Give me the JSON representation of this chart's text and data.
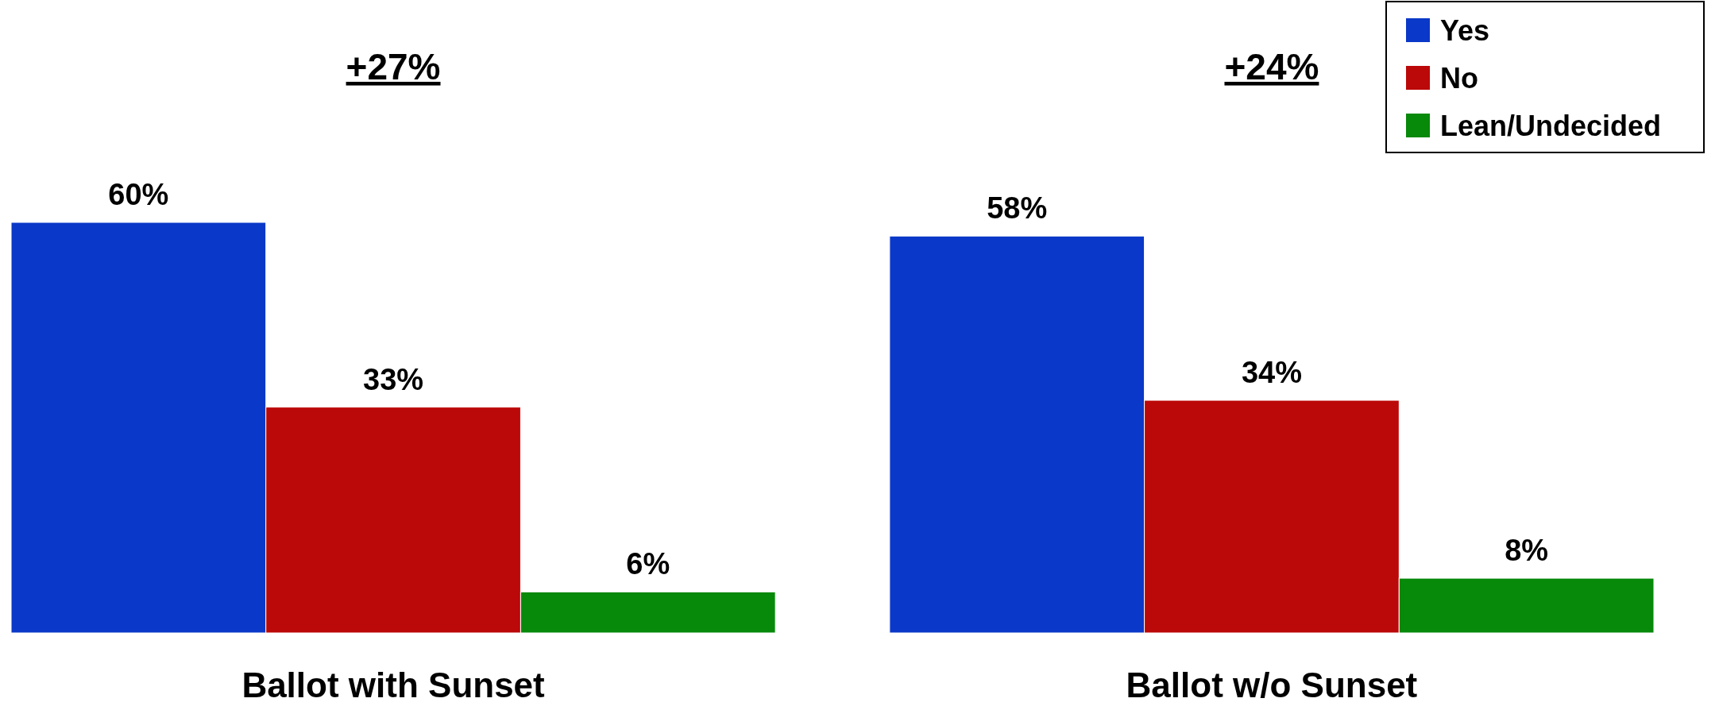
{
  "chart_data": {
    "type": "bar",
    "categories": [
      "Ballot with Sunset",
      "Ballot w/o Sunset"
    ],
    "series": [
      {
        "name": "Yes",
        "color": "#0a38c8",
        "values": [
          60,
          58
        ],
        "value_labels": [
          "60%",
          "58%"
        ]
      },
      {
        "name": "No",
        "color": "#bb0808",
        "values": [
          33,
          34
        ],
        "value_labels": [
          "33%",
          "34%"
        ]
      },
      {
        "name": "Lean/Undecided",
        "color": "#07890a",
        "values": [
          6,
          8
        ],
        "value_labels": [
          "6%",
          "8%"
        ]
      }
    ],
    "legend": "top right",
    "grid": false,
    "annotations": [
      "+27%",
      "+24%"
    ]
  }
}
